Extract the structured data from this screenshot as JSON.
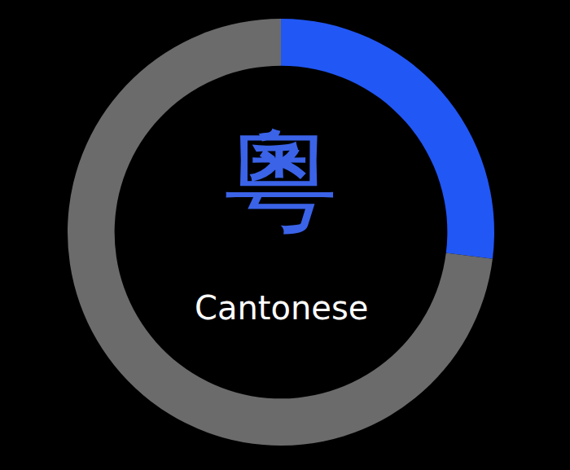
{
  "chart_data": {
    "type": "donut",
    "values": [
      27,
      73
    ],
    "colors": [
      "#2157f5",
      "#6b6b6b"
    ],
    "annotations": [
      "粵",
      "Cantonese"
    ]
  }
}
